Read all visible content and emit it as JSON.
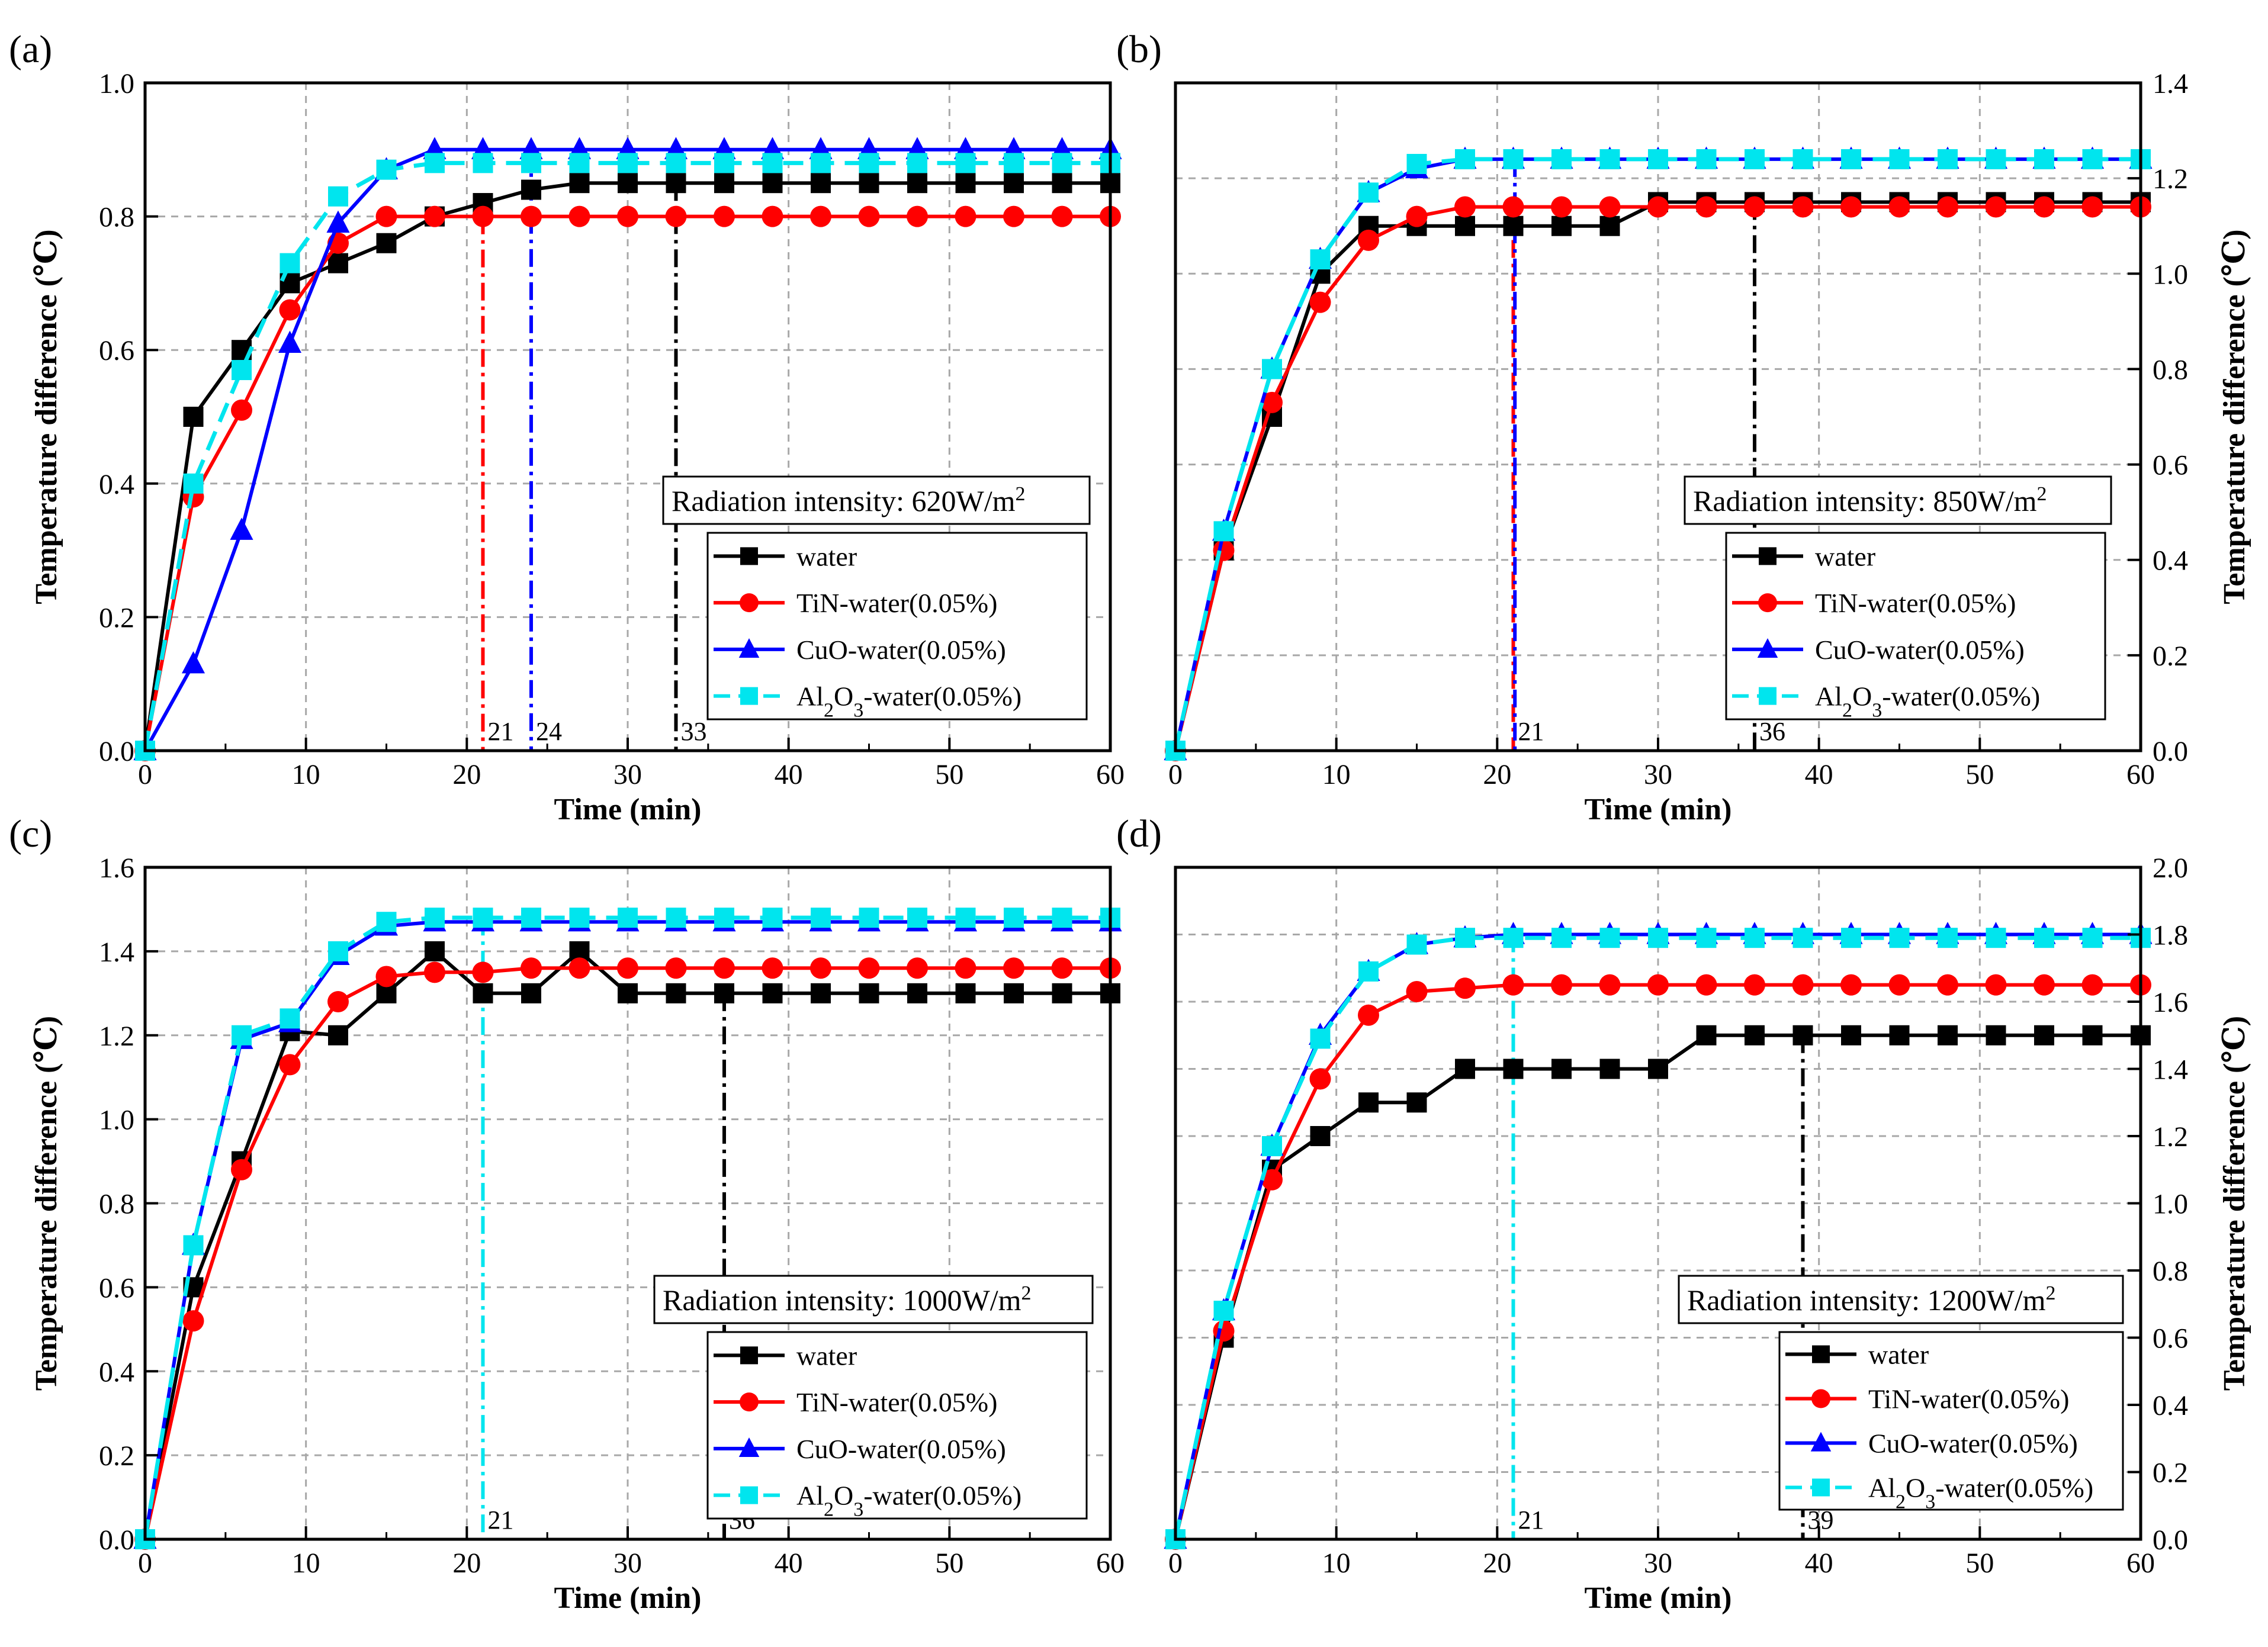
{
  "chart_data": [
    {
      "type": "line",
      "panel_label": "(a)",
      "xlabel": "Time (min)",
      "ylabel": "Temperature  difference (℃)",
      "y_axis_side": "left",
      "xlim": [
        0,
        60
      ],
      "ylim": [
        0,
        1.0
      ],
      "xticks": [
        "0",
        "10",
        "20",
        "30",
        "40",
        "50",
        "60"
      ],
      "yticks": [
        "0.0",
        "0.2",
        "0.4",
        "0.6",
        "0.8",
        "1.0"
      ],
      "grid": true,
      "radiation_label": "Radiation intensity: 620W/m",
      "radiation_sup": "2",
      "legend_position": "lower-right",
      "legend": [
        "water",
        "TiN-water(0.05%)",
        "CuO-water(0.05%)",
        "Al2O3-water(0.05%)"
      ],
      "x": [
        0,
        3,
        6,
        9,
        12,
        15,
        18,
        21,
        24,
        27,
        30,
        33,
        36,
        39,
        42,
        45,
        48,
        51,
        54,
        57,
        60
      ],
      "series": [
        {
          "name": "water",
          "color": "#000000",
          "marker": "square",
          "dash": "solid",
          "values": [
            0,
            0.5,
            0.6,
            0.7,
            0.73,
            0.76,
            0.8,
            0.82,
            0.84,
            0.85,
            0.85,
            0.85,
            0.85,
            0.85,
            0.85,
            0.85,
            0.85,
            0.85,
            0.85,
            0.85,
            0.85
          ]
        },
        {
          "name": "TiN-water(0.05%)",
          "color": "#ff0000",
          "marker": "circle",
          "dash": "solid",
          "values": [
            0,
            0.38,
            0.51,
            0.66,
            0.76,
            0.8,
            0.8,
            0.8,
            0.8,
            0.8,
            0.8,
            0.8,
            0.8,
            0.8,
            0.8,
            0.8,
            0.8,
            0.8,
            0.8,
            0.8,
            0.8
          ]
        },
        {
          "name": "CuO-water(0.05%)",
          "color": "#0000ff",
          "marker": "triangle",
          "dash": "solid",
          "values": [
            0,
            0.13,
            0.33,
            0.61,
            0.79,
            0.87,
            0.9,
            0.9,
            0.9,
            0.9,
            0.9,
            0.9,
            0.9,
            0.9,
            0.9,
            0.9,
            0.9,
            0.9,
            0.9,
            0.9,
            0.9
          ]
        },
        {
          "name": "Al2O3-water(0.05%)",
          "color": "#00e5ee",
          "marker": "square",
          "dash": "dashed",
          "values": [
            0,
            0.4,
            0.57,
            0.73,
            0.83,
            0.87,
            0.88,
            0.88,
            0.88,
            0.88,
            0.88,
            0.88,
            0.88,
            0.88,
            0.88,
            0.88,
            0.88,
            0.88,
            0.88,
            0.88,
            0.88
          ]
        }
      ],
      "vlines": [
        {
          "x": 21,
          "color": "#ff0000",
          "label": "21",
          "y_top": 0.8
        },
        {
          "x": 24,
          "color": "#0000ff",
          "label": "24",
          "y_top": 0.9
        },
        {
          "x": 33,
          "color": "#000000",
          "label": "33",
          "y_top": 0.85
        }
      ]
    },
    {
      "type": "line",
      "panel_label": "(b)",
      "xlabel": "Time (min)",
      "ylabel": "Temperature  difference (℃)",
      "y_axis_side": "right",
      "xlim": [
        0,
        60
      ],
      "ylim": [
        0,
        1.4
      ],
      "xticks": [
        "0",
        "10",
        "20",
        "30",
        "40",
        "50",
        "60"
      ],
      "yticks": [
        "0.0",
        "0.2",
        "0.4",
        "0.6",
        "0.8",
        "1.0",
        "1.2",
        "1.4"
      ],
      "grid": true,
      "radiation_label": "Radiation intensity: 850W/m",
      "radiation_sup": "2",
      "legend_position": "lower-right",
      "legend": [
        "water",
        "TiN-water(0.05%)",
        "CuO-water(0.05%)",
        "Al2O3-water(0.05%)"
      ],
      "x": [
        0,
        3,
        6,
        9,
        12,
        15,
        18,
        21,
        24,
        27,
        30,
        33,
        36,
        39,
        42,
        45,
        48,
        51,
        54,
        57,
        60
      ],
      "series": [
        {
          "name": "water",
          "color": "#000000",
          "marker": "square",
          "dash": "solid",
          "values": [
            0,
            0.42,
            0.7,
            1.0,
            1.1,
            1.1,
            1.1,
            1.1,
            1.1,
            1.1,
            1.15,
            1.15,
            1.15,
            1.15,
            1.15,
            1.15,
            1.15,
            1.15,
            1.15,
            1.15,
            1.15
          ]
        },
        {
          "name": "TiN-water(0.05%)",
          "color": "#ff0000",
          "marker": "circle",
          "dash": "solid",
          "values": [
            0,
            0.42,
            0.73,
            0.94,
            1.07,
            1.12,
            1.14,
            1.14,
            1.14,
            1.14,
            1.14,
            1.14,
            1.14,
            1.14,
            1.14,
            1.14,
            1.14,
            1.14,
            1.14,
            1.14,
            1.14
          ]
        },
        {
          "name": "CuO-water(0.05%)",
          "color": "#0000ff",
          "marker": "triangle",
          "dash": "solid",
          "values": [
            0,
            0.46,
            0.8,
            1.03,
            1.17,
            1.22,
            1.24,
            1.24,
            1.24,
            1.24,
            1.24,
            1.24,
            1.24,
            1.24,
            1.24,
            1.24,
            1.24,
            1.24,
            1.24,
            1.24,
            1.24
          ]
        },
        {
          "name": "Al2O3-water(0.05%)",
          "color": "#00e5ee",
          "marker": "square",
          "dash": "dashed",
          "values": [
            0,
            0.46,
            0.8,
            1.03,
            1.17,
            1.23,
            1.24,
            1.24,
            1.24,
            1.24,
            1.24,
            1.24,
            1.24,
            1.24,
            1.24,
            1.24,
            1.24,
            1.24,
            1.24,
            1.24,
            1.24
          ]
        }
      ],
      "vlines": [
        {
          "x": 21,
          "color": "#ff0000",
          "label": "21",
          "y_top": 1.14
        },
        {
          "x": 21.1,
          "color": "#0000ff",
          "label": "",
          "y_top": 1.24
        },
        {
          "x": 36,
          "color": "#000000",
          "label": "36",
          "y_top": 1.15
        }
      ]
    },
    {
      "type": "line",
      "panel_label": "(c)",
      "xlabel": "Time (min)",
      "ylabel": "Temperature  difference (℃)",
      "y_axis_side": "left",
      "xlim": [
        0,
        60
      ],
      "ylim": [
        0,
        1.6
      ],
      "xticks": [
        "0",
        "10",
        "20",
        "30",
        "40",
        "50",
        "60"
      ],
      "yticks": [
        "0.0",
        "0.2",
        "0.4",
        "0.6",
        "0.8",
        "1.0",
        "1.2",
        "1.4",
        "1.6"
      ],
      "grid": true,
      "radiation_label": "Radiation intensity: 1000W/m",
      "radiation_sup": "2",
      "legend_position": "lower-right",
      "legend": [
        "water",
        "TiN-water(0.05%)",
        "CuO-water(0.05%)",
        "Al2O3-water(0.05%)"
      ],
      "x": [
        0,
        3,
        6,
        9,
        12,
        15,
        18,
        21,
        24,
        27,
        30,
        33,
        36,
        39,
        42,
        45,
        48,
        51,
        54,
        57,
        60
      ],
      "series": [
        {
          "name": "water",
          "color": "#000000",
          "marker": "square",
          "dash": "solid",
          "values": [
            0,
            0.6,
            0.9,
            1.21,
            1.2,
            1.3,
            1.4,
            1.3,
            1.3,
            1.4,
            1.3,
            1.3,
            1.3,
            1.3,
            1.3,
            1.3,
            1.3,
            1.3,
            1.3,
            1.3,
            1.3
          ]
        },
        {
          "name": "TiN-water(0.05%)",
          "color": "#ff0000",
          "marker": "circle",
          "dash": "solid",
          "values": [
            0,
            0.52,
            0.88,
            1.13,
            1.28,
            1.34,
            1.35,
            1.35,
            1.36,
            1.36,
            1.36,
            1.36,
            1.36,
            1.36,
            1.36,
            1.36,
            1.36,
            1.36,
            1.36,
            1.36,
            1.36
          ]
        },
        {
          "name": "CuO-water(0.05%)",
          "color": "#0000ff",
          "marker": "triangle",
          "dash": "solid",
          "values": [
            0,
            0.7,
            1.19,
            1.23,
            1.39,
            1.46,
            1.47,
            1.47,
            1.47,
            1.47,
            1.47,
            1.47,
            1.47,
            1.47,
            1.47,
            1.47,
            1.47,
            1.47,
            1.47,
            1.47,
            1.47
          ]
        },
        {
          "name": "Al2O3-water(0.05%)",
          "color": "#00e5ee",
          "marker": "square",
          "dash": "dashed",
          "values": [
            0,
            0.7,
            1.2,
            1.24,
            1.4,
            1.47,
            1.48,
            1.48,
            1.48,
            1.48,
            1.48,
            1.48,
            1.48,
            1.48,
            1.48,
            1.48,
            1.48,
            1.48,
            1.48,
            1.48,
            1.48
          ]
        }
      ],
      "vlines": [
        {
          "x": 21,
          "color": "#00e5ee",
          "label": "21",
          "y_top": 1.48
        },
        {
          "x": 36,
          "color": "#000000",
          "label": "36",
          "y_top": 1.3
        }
      ]
    },
    {
      "type": "line",
      "panel_label": "(d)",
      "xlabel": "Time (min)",
      "ylabel": "Temperature  difference (℃)",
      "y_axis_side": "right",
      "xlim": [
        0,
        60
      ],
      "ylim": [
        0,
        2.0
      ],
      "xticks": [
        "0",
        "10",
        "20",
        "30",
        "40",
        "50",
        "60"
      ],
      "yticks": [
        "0.0",
        "0.2",
        "0.4",
        "0.6",
        "0.8",
        "1.0",
        "1.2",
        "1.4",
        "1.6",
        "1.8",
        "2.0"
      ],
      "grid": true,
      "radiation_label": "Radiation intensity: 1200W/m",
      "radiation_sup": "2",
      "legend_position": "lower-right",
      "legend": [
        "water",
        "TiN-water(0.05%)",
        "CuO-water(0.05%)",
        "Al2O3-water(0.05%)"
      ],
      "x": [
        0,
        3,
        6,
        9,
        12,
        15,
        18,
        21,
        24,
        27,
        30,
        33,
        36,
        39,
        42,
        45,
        48,
        51,
        54,
        57,
        60
      ],
      "series": [
        {
          "name": "water",
          "color": "#000000",
          "marker": "square",
          "dash": "solid",
          "values": [
            0,
            0.6,
            1.1,
            1.2,
            1.3,
            1.3,
            1.4,
            1.4,
            1.4,
            1.4,
            1.4,
            1.5,
            1.5,
            1.5,
            1.5,
            1.5,
            1.5,
            1.5,
            1.5,
            1.5,
            1.5
          ]
        },
        {
          "name": "TiN-water(0.05%)",
          "color": "#ff0000",
          "marker": "circle",
          "dash": "solid",
          "values": [
            0,
            0.62,
            1.07,
            1.37,
            1.56,
            1.63,
            1.64,
            1.65,
            1.65,
            1.65,
            1.65,
            1.65,
            1.65,
            1.65,
            1.65,
            1.65,
            1.65,
            1.65,
            1.65,
            1.65,
            1.65
          ]
        },
        {
          "name": "CuO-water(0.05%)",
          "color": "#0000ff",
          "marker": "triangle",
          "dash": "solid",
          "values": [
            0,
            0.68,
            1.17,
            1.5,
            1.69,
            1.77,
            1.79,
            1.8,
            1.8,
            1.8,
            1.8,
            1.8,
            1.8,
            1.8,
            1.8,
            1.8,
            1.8,
            1.8,
            1.8,
            1.8,
            1.8
          ]
        },
        {
          "name": "Al2O3-water(0.05%)",
          "color": "#00e5ee",
          "marker": "square",
          "dash": "dashed",
          "values": [
            0,
            0.68,
            1.17,
            1.49,
            1.69,
            1.77,
            1.79,
            1.79,
            1.79,
            1.79,
            1.79,
            1.79,
            1.79,
            1.79,
            1.79,
            1.79,
            1.79,
            1.79,
            1.79,
            1.79,
            1.79
          ]
        }
      ],
      "vlines": [
        {
          "x": 21,
          "color": "#00e5ee",
          "label": "21",
          "y_top": 1.8
        },
        {
          "x": 39,
          "color": "#000000",
          "label": "39",
          "y_top": 1.5
        }
      ]
    }
  ]
}
